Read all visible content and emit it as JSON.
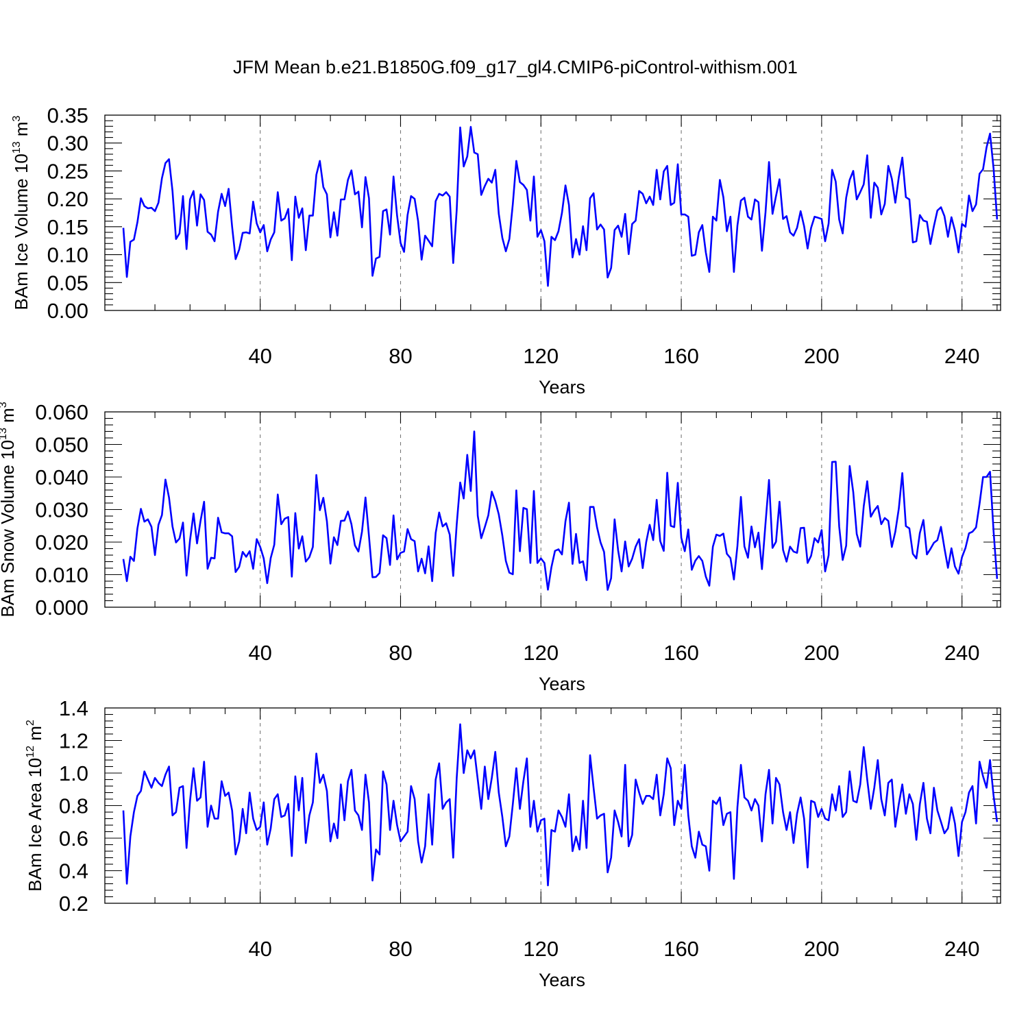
{
  "title": "JFM Mean b.e21.B1850G.f09_g17_gl4.CMIP6-piControl-withism.001",
  "colors": {
    "line": "#0000ff",
    "axes": "#000000",
    "grid": "#777777",
    "background": "#ffffff"
  },
  "chart_data": [
    {
      "type": "line",
      "ylabel": "BAm Ice Volume 10",
      "ylabel_exp": "13",
      "ylabel_unit": " m",
      "ylabel_unit_exp": "3",
      "xlabel": "Years",
      "xlim": [
        1,
        251
      ],
      "ylim": [
        0.0,
        0.35
      ],
      "xticks": [
        40,
        80,
        120,
        160,
        200,
        240
      ],
      "xtick_labels": [
        "40",
        "80",
        "120",
        "160",
        "200",
        "240"
      ],
      "yticks": [
        0.0,
        0.05,
        0.1,
        0.15,
        0.2,
        0.25,
        0.3,
        0.35
      ],
      "ytick_labels": [
        "0.00",
        "0.05",
        "0.10",
        "0.15",
        "0.20",
        "0.25",
        "0.30",
        "0.35"
      ],
      "grid": "vertical dashed at major x ticks",
      "x_start": 1,
      "values": [
        0.148,
        0.06,
        0.123,
        0.127,
        0.158,
        0.201,
        0.187,
        0.183,
        0.184,
        0.178,
        0.193,
        0.237,
        0.264,
        0.271,
        0.214,
        0.128,
        0.138,
        0.205,
        0.11,
        0.199,
        0.214,
        0.152,
        0.208,
        0.198,
        0.141,
        0.136,
        0.124,
        0.177,
        0.209,
        0.187,
        0.218,
        0.15,
        0.092,
        0.109,
        0.139,
        0.14,
        0.138,
        0.195,
        0.156,
        0.14,
        0.153,
        0.106,
        0.127,
        0.14,
        0.212,
        0.161,
        0.165,
        0.182,
        0.09,
        0.204,
        0.166,
        0.183,
        0.108,
        0.17,
        0.17,
        0.243,
        0.268,
        0.221,
        0.208,
        0.131,
        0.176,
        0.134,
        0.199,
        0.199,
        0.234,
        0.251,
        0.208,
        0.213,
        0.149,
        0.239,
        0.201,
        0.062,
        0.093,
        0.096,
        0.178,
        0.181,
        0.136,
        0.24,
        0.17,
        0.121,
        0.105,
        0.171,
        0.205,
        0.2,
        0.16,
        0.091,
        0.134,
        0.125,
        0.115,
        0.196,
        0.209,
        0.206,
        0.212,
        0.204,
        0.085,
        0.18,
        0.328,
        0.258,
        0.276,
        0.329,
        0.283,
        0.28,
        0.207,
        0.223,
        0.236,
        0.229,
        0.252,
        0.173,
        0.13,
        0.106,
        0.128,
        0.191,
        0.268,
        0.23,
        0.225,
        0.216,
        0.161,
        0.24,
        0.132,
        0.144,
        0.124,
        0.044,
        0.132,
        0.126,
        0.142,
        0.175,
        0.224,
        0.189,
        0.095,
        0.128,
        0.1,
        0.151,
        0.108,
        0.201,
        0.21,
        0.145,
        0.154,
        0.145,
        0.059,
        0.076,
        0.144,
        0.152,
        0.132,
        0.173,
        0.101,
        0.155,
        0.161,
        0.214,
        0.209,
        0.192,
        0.204,
        0.189,
        0.252,
        0.199,
        0.249,
        0.259,
        0.189,
        0.193,
        0.262,
        0.172,
        0.172,
        0.168,
        0.098,
        0.1,
        0.14,
        0.153,
        0.104,
        0.069,
        0.168,
        0.161,
        0.234,
        0.203,
        0.142,
        0.168,
        0.069,
        0.152,
        0.197,
        0.202,
        0.168,
        0.163,
        0.199,
        0.194,
        0.107,
        0.176,
        0.266,
        0.173,
        0.205,
        0.235,
        0.164,
        0.169,
        0.14,
        0.134,
        0.148,
        0.178,
        0.151,
        0.111,
        0.148,
        0.168,
        0.166,
        0.164,
        0.124,
        0.156,
        0.252,
        0.231,
        0.163,
        0.138,
        0.202,
        0.234,
        0.25,
        0.199,
        0.212,
        0.226,
        0.278,
        0.166,
        0.229,
        0.22,
        0.172,
        0.191,
        0.259,
        0.236,
        0.193,
        0.239,
        0.274,
        0.203,
        0.199,
        0.122,
        0.124,
        0.171,
        0.161,
        0.159,
        0.119,
        0.151,
        0.179,
        0.185,
        0.169,
        0.132,
        0.167,
        0.143,
        0.104,
        0.155,
        0.15,
        0.206,
        0.178,
        0.19,
        0.245,
        0.253,
        0.292,
        0.317,
        0.254,
        0.163
      ]
    },
    {
      "type": "line",
      "ylabel": "BAm Snow Volume 10",
      "ylabel_exp": "13",
      "ylabel_unit": " m",
      "ylabel_unit_exp": "3",
      "xlabel": "Years",
      "xlim": [
        1,
        251
      ],
      "ylim": [
        0.0,
        0.06
      ],
      "xticks": [
        40,
        80,
        120,
        160,
        200,
        240
      ],
      "xtick_labels": [
        "40",
        "80",
        "120",
        "160",
        "200",
        "240"
      ],
      "yticks": [
        0.0,
        0.01,
        0.02,
        0.03,
        0.04,
        0.05,
        0.06
      ],
      "ytick_labels": [
        "0.000",
        "0.010",
        "0.020",
        "0.030",
        "0.040",
        "0.050",
        "0.060"
      ],
      "grid": "vertical dashed at major x ticks",
      "x_start": 1,
      "values": [
        0.0148,
        0.008,
        0.0155,
        0.0142,
        0.0242,
        0.0302,
        0.0263,
        0.027,
        0.0247,
        0.016,
        0.0253,
        0.0283,
        0.0392,
        0.0337,
        0.0248,
        0.0199,
        0.0211,
        0.026,
        0.0097,
        0.0206,
        0.0288,
        0.0196,
        0.0265,
        0.0324,
        0.0118,
        0.0152,
        0.015,
        0.0275,
        0.023,
        0.0227,
        0.0227,
        0.0218,
        0.0108,
        0.0124,
        0.017,
        0.0155,
        0.0172,
        0.0118,
        0.0209,
        0.0185,
        0.015,
        0.0074,
        0.0151,
        0.0192,
        0.0346,
        0.0255,
        0.0272,
        0.0277,
        0.0094,
        0.0289,
        0.018,
        0.0218,
        0.014,
        0.0154,
        0.0185,
        0.0406,
        0.0298,
        0.0336,
        0.0264,
        0.0134,
        0.0215,
        0.0191,
        0.0265,
        0.0266,
        0.0294,
        0.0255,
        0.019,
        0.0171,
        0.0232,
        0.0337,
        0.0218,
        0.0092,
        0.0093,
        0.0105,
        0.0221,
        0.0212,
        0.013,
        0.0282,
        0.0147,
        0.0167,
        0.0171,
        0.024,
        0.0209,
        0.0203,
        0.011,
        0.0149,
        0.0104,
        0.0187,
        0.008,
        0.0228,
        0.0291,
        0.0248,
        0.0258,
        0.0223,
        0.0096,
        0.0254,
        0.0383,
        0.0334,
        0.0468,
        0.0357,
        0.054,
        0.0281,
        0.0212,
        0.0246,
        0.0282,
        0.0355,
        0.0326,
        0.0285,
        0.022,
        0.0142,
        0.0106,
        0.0101,
        0.0359,
        0.0172,
        0.0305,
        0.0301,
        0.0136,
        0.0357,
        0.0136,
        0.015,
        0.0136,
        0.0054,
        0.0123,
        0.0173,
        0.0178,
        0.0162,
        0.0264,
        0.0321,
        0.0133,
        0.0225,
        0.0136,
        0.0141,
        0.0083,
        0.0308,
        0.0308,
        0.0245,
        0.0199,
        0.017,
        0.0053,
        0.0089,
        0.027,
        0.0175,
        0.011,
        0.0202,
        0.0125,
        0.0149,
        0.0186,
        0.0209,
        0.012,
        0.02,
        0.0253,
        0.0206,
        0.033,
        0.0203,
        0.0173,
        0.0413,
        0.025,
        0.0246,
        0.0382,
        0.0213,
        0.0172,
        0.0239,
        0.0115,
        0.0143,
        0.0157,
        0.0142,
        0.0094,
        0.0066,
        0.0186,
        0.0223,
        0.0219,
        0.0226,
        0.0164,
        0.0151,
        0.0085,
        0.0188,
        0.0339,
        0.0187,
        0.0152,
        0.0248,
        0.0184,
        0.0229,
        0.0117,
        0.0258,
        0.0391,
        0.0182,
        0.0201,
        0.0324,
        0.0176,
        0.014,
        0.0186,
        0.0171,
        0.0167,
        0.0243,
        0.0244,
        0.0136,
        0.0158,
        0.0212,
        0.0199,
        0.0237,
        0.011,
        0.016,
        0.0446,
        0.0447,
        0.0248,
        0.0145,
        0.0189,
        0.0434,
        0.0354,
        0.0225,
        0.0186,
        0.031,
        0.0387,
        0.0278,
        0.0297,
        0.0311,
        0.0255,
        0.0274,
        0.0265,
        0.0185,
        0.0232,
        0.0303,
        0.0412,
        0.0249,
        0.0242,
        0.0164,
        0.015,
        0.0228,
        0.0268,
        0.0162,
        0.0179,
        0.0198,
        0.0206,
        0.0247,
        0.0181,
        0.0121,
        0.0181,
        0.0125,
        0.0103,
        0.0154,
        0.0182,
        0.0227,
        0.0232,
        0.0245,
        0.0318,
        0.04,
        0.04,
        0.0416,
        0.0232,
        0.0087
      ]
    },
    {
      "type": "line",
      "ylabel": "BAm Ice Area 10",
      "ylabel_exp": "12",
      "ylabel_unit": " m",
      "ylabel_unit_exp": "2",
      "xlabel": "Years",
      "xlim": [
        1,
        251
      ],
      "ylim": [
        0.2,
        1.4
      ],
      "xticks": [
        40,
        80,
        120,
        160,
        200,
        240
      ],
      "xtick_labels": [
        "40",
        "80",
        "120",
        "160",
        "200",
        "240"
      ],
      "yticks": [
        0.2,
        0.4,
        0.6,
        0.8,
        1.0,
        1.2,
        1.4
      ],
      "ytick_labels": [
        "0.2",
        "0.4",
        "0.6",
        "0.8",
        "1.0",
        "1.2",
        "1.4"
      ],
      "grid": "vertical dashed at major x ticks",
      "x_start": 1,
      "values": [
        0.77,
        0.32,
        0.61,
        0.76,
        0.86,
        0.89,
        1.01,
        0.96,
        0.91,
        0.97,
        0.94,
        0.92,
        0.99,
        1.04,
        0.74,
        0.76,
        0.91,
        0.92,
        0.54,
        0.83,
        1.03,
        0.83,
        0.85,
        1.07,
        0.67,
        0.8,
        0.72,
        0.72,
        0.95,
        0.86,
        0.88,
        0.77,
        0.5,
        0.58,
        0.78,
        0.63,
        0.88,
        0.72,
        0.65,
        0.67,
        0.82,
        0.56,
        0.66,
        0.84,
        0.87,
        0.73,
        0.74,
        0.81,
        0.49,
        0.98,
        0.77,
        0.97,
        0.57,
        0.74,
        0.82,
        1.12,
        0.94,
        0.99,
        0.89,
        0.58,
        0.69,
        0.6,
        0.93,
        0.71,
        0.95,
        1.02,
        0.77,
        0.74,
        0.65,
        0.99,
        0.82,
        0.34,
        0.53,
        0.5,
        1.01,
        0.93,
        0.65,
        0.83,
        0.68,
        0.58,
        0.61,
        0.64,
        0.92,
        0.84,
        0.58,
        0.45,
        0.55,
        0.87,
        0.56,
        0.96,
        1.06,
        0.78,
        0.82,
        0.84,
        0.48,
        0.97,
        1.3,
        1.0,
        1.14,
        1.09,
        1.14,
        0.96,
        0.78,
        1.04,
        0.84,
        0.97,
        1.13,
        0.88,
        0.73,
        0.55,
        0.61,
        0.81,
        1.03,
        0.78,
        0.95,
        1.09,
        0.67,
        0.83,
        0.64,
        0.71,
        0.72,
        0.31,
        0.65,
        0.64,
        0.77,
        0.73,
        0.67,
        0.87,
        0.52,
        0.61,
        0.53,
        0.83,
        0.54,
        1.11,
        0.91,
        0.72,
        0.74,
        0.75,
        0.39,
        0.48,
        0.77,
        0.7,
        0.61,
        1.05,
        0.55,
        0.62,
        0.96,
        0.88,
        0.81,
        0.86,
        0.86,
        0.84,
        0.99,
        0.74,
        0.87,
        1.09,
        1.03,
        0.68,
        0.83,
        0.78,
        1.05,
        0.74,
        0.55,
        0.48,
        0.64,
        0.56,
        0.55,
        0.4,
        0.83,
        0.81,
        0.85,
        0.68,
        0.75,
        0.76,
        0.35,
        0.79,
        1.05,
        0.85,
        0.83,
        0.77,
        0.84,
        0.8,
        0.58,
        0.87,
        1.02,
        0.69,
        0.97,
        0.93,
        0.76,
        0.65,
        0.76,
        0.57,
        0.75,
        0.85,
        0.72,
        0.42,
        0.83,
        0.82,
        0.73,
        0.78,
        0.72,
        0.71,
        0.87,
        0.77,
        0.92,
        0.73,
        0.76,
        1.01,
        0.83,
        0.82,
        0.93,
        1.16,
        0.96,
        0.78,
        0.91,
        1.08,
        0.84,
        0.74,
        0.94,
        0.96,
        0.67,
        0.81,
        0.93,
        0.75,
        0.87,
        0.81,
        0.59,
        0.81,
        0.94,
        0.72,
        0.63,
        0.91,
        0.77,
        0.7,
        0.63,
        0.66,
        0.79,
        0.69,
        0.49,
        0.7,
        0.76,
        0.88,
        0.92,
        0.69,
        1.07,
        0.98,
        0.91,
        1.08,
        0.86,
        0.7
      ]
    }
  ]
}
